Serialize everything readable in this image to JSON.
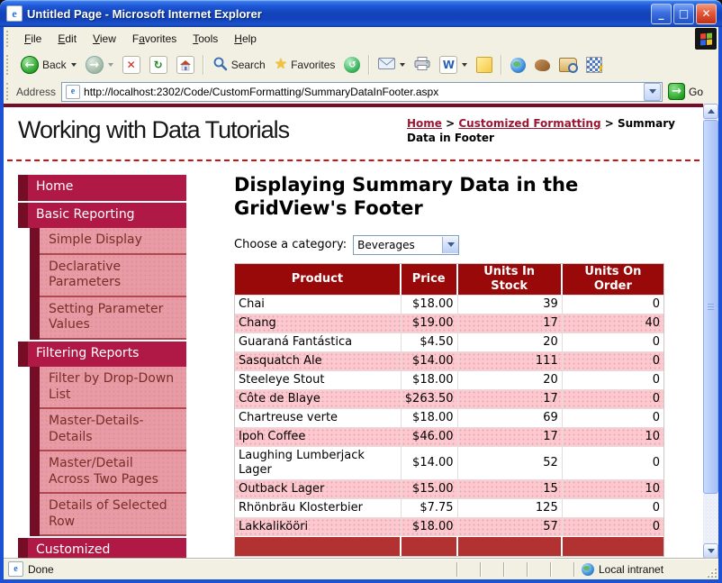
{
  "window": {
    "title": "Untitled Page - Microsoft Internet Explorer",
    "menu": [
      {
        "label": "File",
        "underline": "F"
      },
      {
        "label": "Edit",
        "underline": "E"
      },
      {
        "label": "View",
        "underline": "V"
      },
      {
        "label": "Favorites",
        "underline": "a"
      },
      {
        "label": "Tools",
        "underline": "T"
      },
      {
        "label": "Help",
        "underline": "H"
      }
    ],
    "toolbar": {
      "back": "Back",
      "search": "Search",
      "favorites": "Favorites"
    },
    "address": {
      "label": "Address",
      "url": "http://localhost:2302/Code/CustomFormatting/SummaryDataInFooter.aspx",
      "go": "Go"
    },
    "statusbar": {
      "message": "Done",
      "zone": "Local intranet"
    }
  },
  "page": {
    "site_title": "Working with Data Tutorials",
    "breadcrumb": [
      {
        "label": "Home",
        "link": true
      },
      {
        "label": "Customized Formatting",
        "link": true
      },
      {
        "label": "Summary Data in Footer",
        "link": false
      }
    ],
    "breadcrumb_separator": ">",
    "sidebar": [
      {
        "label": "Home",
        "level": 1
      },
      {
        "label": "Basic Reporting",
        "level": 1
      },
      {
        "label": "Simple Display",
        "level": 2
      },
      {
        "label": "Declarative Parameters",
        "level": 2
      },
      {
        "label": "Setting Parameter Values",
        "level": 2
      },
      {
        "label": "Filtering Reports",
        "level": 1
      },
      {
        "label": "Filter by Drop-Down List",
        "level": 2
      },
      {
        "label": "Master-Details-Details",
        "level": 2
      },
      {
        "label": "Master/Detail Across Two Pages",
        "level": 2
      },
      {
        "label": "Details of Selected Row",
        "level": 2
      },
      {
        "label": "Customized Formatting",
        "level": 1
      }
    ],
    "heading": "Displaying Summary Data in the GridView's Footer",
    "category": {
      "label": "Choose a category:",
      "value": "Beverages"
    },
    "grid": {
      "columns": [
        "Product",
        "Price",
        "Units In\nStock",
        "Units On\nOrder"
      ],
      "rows": [
        [
          "Chai",
          "$18.00",
          "39",
          "0"
        ],
        [
          "Chang",
          "$19.00",
          "17",
          "40"
        ],
        [
          "Guaraná Fantástica",
          "$4.50",
          "20",
          "0"
        ],
        [
          "Sasquatch Ale",
          "$14.00",
          "111",
          "0"
        ],
        [
          "Steeleye Stout",
          "$18.00",
          "20",
          "0"
        ],
        [
          "Côte de Blaye",
          "$263.50",
          "17",
          "0"
        ],
        [
          "Chartreuse verte",
          "$18.00",
          "69",
          "0"
        ],
        [
          "Ipoh Coffee",
          "$46.00",
          "17",
          "10"
        ],
        [
          "Laughing Lumberjack Lager",
          "$14.00",
          "52",
          "0"
        ],
        [
          "Outback Lager",
          "$15.00",
          "15",
          "10"
        ],
        [
          "Rhönbräu Klosterbier",
          "$7.75",
          "125",
          "0"
        ],
        [
          "Lakkalikööri",
          "$18.00",
          "57",
          "0"
        ]
      ],
      "footer": [
        "",
        "",
        "",
        ""
      ]
    }
  },
  "colors": {
    "chrome_beige": "#f2f0e3",
    "nav_crimson": "#b01946",
    "nav_maroon": "#760d26",
    "nav_sub_pink": "#e89ba4",
    "nav_sub_text": "#7b2d28",
    "link_red": "#9c1533",
    "grid_header_red": "#990909",
    "grid_footer_red": "#b23232",
    "grid_alt_pink": "#ffc8ce",
    "go_green": "#2ba82b"
  }
}
